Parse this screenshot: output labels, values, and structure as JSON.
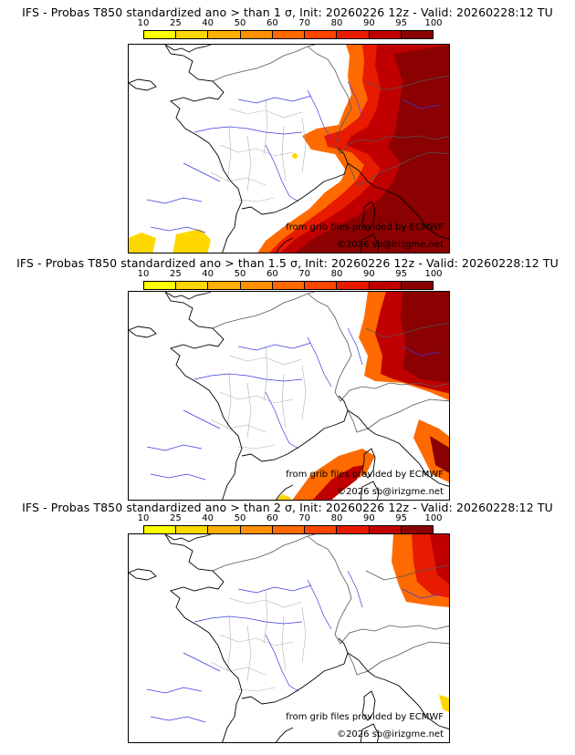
{
  "colorbar": {
    "ticks": [
      "10",
      "25",
      "40",
      "50",
      "60",
      "70",
      "80",
      "90",
      "95",
      "100"
    ],
    "colors": [
      "#ffff00",
      "#ffd700",
      "#ffb000",
      "#ff9000",
      "#ff6a00",
      "#ff4500",
      "#e81a00",
      "#c00000",
      "#8b0000"
    ]
  },
  "panels": [
    {
      "title": "IFS - Probas T850  standardized ano > than 1 σ, Init: 20260226 12z - Valid: 20260228:12 TU",
      "credit_source": "from grib files provided by ECMWF",
      "credit_copyright": "©2026 sb@irizgme.net"
    },
    {
      "title": "IFS - Probas T850  standardized ano > than 1.5 σ, Init: 20260226 12z - Valid: 20260228:12 TU",
      "credit_source": "from grib files provided by ECMWF",
      "credit_copyright": "©2026 sb@irizgme.net"
    },
    {
      "title": "IFS - Probas T850  standardized ano > than 2 σ, Init: 20260226 12z - Valid: 20260228:12 TU",
      "credit_source": "from grib files provided by ECMWF",
      "credit_copyright": "©2026 sb@irizgme.net"
    }
  ]
}
